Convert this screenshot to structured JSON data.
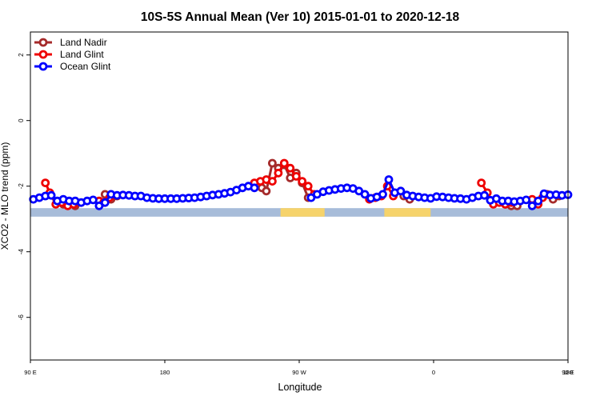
{
  "chart_data": {
    "type": "line",
    "title": "10S-5S Annual Mean (Ver 10)   2015-01-01 to 2020-12-18",
    "xlabel": "Longitude",
    "ylabel": "XCO2 - MLO trend (ppm)",
    "xlim": [
      0,
      360
    ],
    "ylim": [
      -7.3,
      2.7
    ],
    "x_tick_values": [
      0,
      90,
      180,
      270,
      360
    ],
    "x_tick_labels": [
      "90 E",
      "180",
      "90 W",
      "0",
      "90 E",
      "180"
    ],
    "x_tick_values_all": [
      0,
      90,
      180,
      270,
      360,
      450
    ],
    "y_ticks": [
      2,
      0,
      -2,
      -4,
      -6
    ],
    "legend_position": "top-left",
    "band": {
      "y_range": [
        -2.93,
        -2.67
      ],
      "ocean_color": "#a7bcd9",
      "land_color": "#f6d36b",
      "land_segments": [
        [
          167.5,
          197
        ],
        [
          237,
          268
        ]
      ]
    },
    "series": [
      {
        "name": "Land Nadir",
        "color": "#a52a2a",
        "segments": [
          [
            [
              22,
              -2.55
            ],
            [
              26,
              -2.55
            ],
            [
              30,
              -2.6
            ]
          ],
          [
            [
              50,
              -2.25
            ],
            [
              54,
              -2.4
            ],
            [
              58,
              -2.3
            ]
          ],
          [
            [
              155,
              -2.05
            ],
            [
              158,
              -2.15
            ],
            [
              162,
              -1.3
            ],
            [
              166,
              -1.45
            ],
            [
              170,
              -1.35
            ],
            [
              174,
              -1.75
            ],
            [
              178,
              -1.6
            ],
            [
              182,
              -1.9
            ],
            [
              186,
              -2.35
            ]
          ],
          [
            [
              250,
              -2.3
            ],
            [
              254,
              -2.4
            ]
          ],
          [
            [
              318,
              -2.55
            ],
            [
              322,
              -2.6
            ],
            [
              326,
              -2.6
            ]
          ],
          [
            [
              346,
              -2.25
            ],
            [
              350,
              -2.4
            ],
            [
              354,
              -2.3
            ]
          ]
        ]
      },
      {
        "name": "Land Glint",
        "color": "#ee0000",
        "segments": [
          [
            [
              10,
              -1.9
            ],
            [
              13,
              -2.2
            ],
            [
              17,
              -2.55
            ],
            [
              21,
              -2.5
            ],
            [
              25,
              -2.6
            ],
            [
              29,
              -2.55
            ]
          ],
          [
            [
              46,
              -2.45
            ],
            [
              49,
              -2.5
            ],
            [
              53,
              -2.35
            ]
          ],
          [
            [
              150,
              -1.9
            ],
            [
              154,
              -1.85
            ],
            [
              158,
              -1.8
            ],
            [
              162,
              -1.85
            ],
            [
              166,
              -1.6
            ],
            [
              170,
              -1.3
            ],
            [
              174,
              -1.45
            ],
            [
              178,
              -1.7
            ],
            [
              182,
              -1.85
            ],
            [
              186,
              -2.0
            ],
            [
              190,
              -2.25
            ]
          ],
          [
            [
              227,
              -2.4
            ],
            [
              231,
              -2.35
            ],
            [
              235,
              -2.3
            ],
            [
              239,
              -2.0
            ],
            [
              243,
              -2.3
            ]
          ],
          [
            [
              302,
              -1.9
            ],
            [
              306,
              -2.2
            ],
            [
              310,
              -2.55
            ],
            [
              314,
              -2.5
            ],
            [
              318,
              -2.55
            ],
            [
              322,
              -2.5
            ]
          ],
          [
            [
              336,
              -2.4
            ],
            [
              340,
              -2.55
            ],
            [
              343,
              -2.35
            ]
          ]
        ]
      },
      {
        "name": "Ocean Glint",
        "color": "#0000ff",
        "segments": [
          [
            [
              2,
              -2.4
            ],
            [
              6,
              -2.35
            ],
            [
              10,
              -2.3
            ],
            [
              14,
              -2.28
            ],
            [
              18,
              -2.45
            ],
            [
              22,
              -2.4
            ],
            [
              26,
              -2.45
            ],
            [
              30,
              -2.45
            ],
            [
              34,
              -2.5
            ],
            [
              38,
              -2.45
            ],
            [
              42,
              -2.42
            ],
            [
              46,
              -2.6
            ],
            [
              50,
              -2.5
            ],
            [
              54,
              -2.25
            ],
            [
              58,
              -2.28
            ],
            [
              62,
              -2.27
            ],
            [
              66,
              -2.28
            ],
            [
              70,
              -2.3
            ],
            [
              74,
              -2.3
            ],
            [
              78,
              -2.35
            ],
            [
              82,
              -2.37
            ],
            [
              86,
              -2.38
            ],
            [
              90,
              -2.38
            ],
            [
              94,
              -2.38
            ],
            [
              98,
              -2.38
            ],
            [
              102,
              -2.37
            ],
            [
              106,
              -2.36
            ],
            [
              110,
              -2.35
            ],
            [
              114,
              -2.33
            ],
            [
              118,
              -2.3
            ],
            [
              122,
              -2.27
            ],
            [
              126,
              -2.25
            ],
            [
              130,
              -2.22
            ],
            [
              134,
              -2.18
            ],
            [
              138,
              -2.12
            ],
            [
              142,
              -2.05
            ],
            [
              146,
              -2.0
            ],
            [
              150,
              -2.05
            ]
          ],
          [
            [
              188,
              -2.35
            ],
            [
              192,
              -2.25
            ],
            [
              196,
              -2.17
            ],
            [
              200,
              -2.13
            ],
            [
              204,
              -2.1
            ],
            [
              208,
              -2.07
            ],
            [
              212,
              -2.05
            ],
            [
              216,
              -2.07
            ],
            [
              220,
              -2.15
            ],
            [
              224,
              -2.25
            ],
            [
              228,
              -2.37
            ],
            [
              232,
              -2.33
            ],
            [
              236,
              -2.25
            ],
            [
              240,
              -1.8
            ],
            [
              244,
              -2.2
            ],
            [
              248,
              -2.15
            ],
            [
              252,
              -2.27
            ],
            [
              256,
              -2.3
            ],
            [
              260,
              -2.33
            ],
            [
              264,
              -2.35
            ],
            [
              268,
              -2.37
            ],
            [
              272,
              -2.32
            ],
            [
              276,
              -2.33
            ],
            [
              280,
              -2.35
            ],
            [
              284,
              -2.37
            ],
            [
              288,
              -2.38
            ],
            [
              292,
              -2.4
            ],
            [
              296,
              -2.35
            ],
            [
              300,
              -2.3
            ],
            [
              304,
              -2.28
            ],
            [
              308,
              -2.43
            ],
            [
              312,
              -2.38
            ],
            [
              316,
              -2.45
            ],
            [
              320,
              -2.45
            ],
            [
              324,
              -2.47
            ],
            [
              328,
              -2.45
            ],
            [
              332,
              -2.42
            ],
            [
              336,
              -2.6
            ],
            [
              340,
              -2.45
            ],
            [
              344,
              -2.23
            ],
            [
              348,
              -2.27
            ],
            [
              352,
              -2.26
            ],
            [
              356,
              -2.28
            ],
            [
              360,
              -2.26
            ]
          ]
        ]
      }
    ]
  }
}
